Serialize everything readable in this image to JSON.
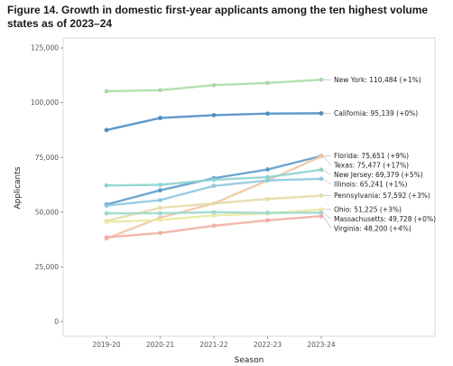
{
  "chart_data": {
    "type": "line",
    "title": "Figure 14. Growth in domestic first-year applicants among the ten highest volume states as of 2023–24",
    "xlabel": "Season",
    "ylabel": "Applicants",
    "x": [
      "2019-20",
      "2020-21",
      "2021-22",
      "2022-23",
      "2023-24"
    ],
    "ylim": [
      0,
      125000
    ],
    "yticks": [
      "0",
      "25,000",
      "50,000",
      "75,000",
      "100,000",
      "125,000"
    ],
    "grid": false,
    "series": [
      {
        "name": "New York",
        "label": "New York: 110,484 (+1%)",
        "color": "#a9dba8",
        "values": [
          105200,
          105700,
          108000,
          109000,
          110484
        ]
      },
      {
        "name": "California",
        "label": "California: 95,139 (+0%)",
        "color": "#4f8fc4",
        "values": [
          87500,
          93000,
          94300,
          95000,
          95139
        ]
      },
      {
        "name": "Florida",
        "label": "Florida: 75,651 (+9%)",
        "color": "#5d9ccc",
        "values": [
          53500,
          60000,
          65500,
          69500,
          75651
        ]
      },
      {
        "name": "Texas",
        "label": "Texas: 75,477 (+17%)",
        "color": "#f0c6a2",
        "values": [
          38000,
          47500,
          54000,
          64500,
          75477
        ]
      },
      {
        "name": "New Jersey",
        "label": "New Jersey: 69,379 (+5%)",
        "color": "#8fd3d0",
        "values": [
          62200,
          62500,
          64800,
          66000,
          69379
        ]
      },
      {
        "name": "Illinois",
        "label": "Illinois: 65,241 (+1%)",
        "color": "#8fc9e1",
        "values": [
          53000,
          55500,
          62000,
          64500,
          65241
        ]
      },
      {
        "name": "Pennsylvania",
        "label": "Pennsylvania: 57,592 (+3%)",
        "color": "#e6dca8",
        "values": [
          46000,
          52000,
          54000,
          56000,
          57592
        ]
      },
      {
        "name": "Ohio",
        "label": "Ohio: 51,225 (+3%)",
        "color": "#e9eaa0",
        "values": [
          45500,
          46500,
          48500,
          49500,
          51225
        ]
      },
      {
        "name": "Massachusetts",
        "label": "Massachusetts: 49,728 (+0%)",
        "color": "#9cd8cd",
        "values": [
          49500,
          49500,
          50000,
          49700,
          49728
        ]
      },
      {
        "name": "Virginia",
        "label": "Virginia: 48,200 (+4%)",
        "color": "#f2aea2",
        "values": [
          38500,
          40500,
          43800,
          46300,
          48200
        ]
      }
    ]
  }
}
